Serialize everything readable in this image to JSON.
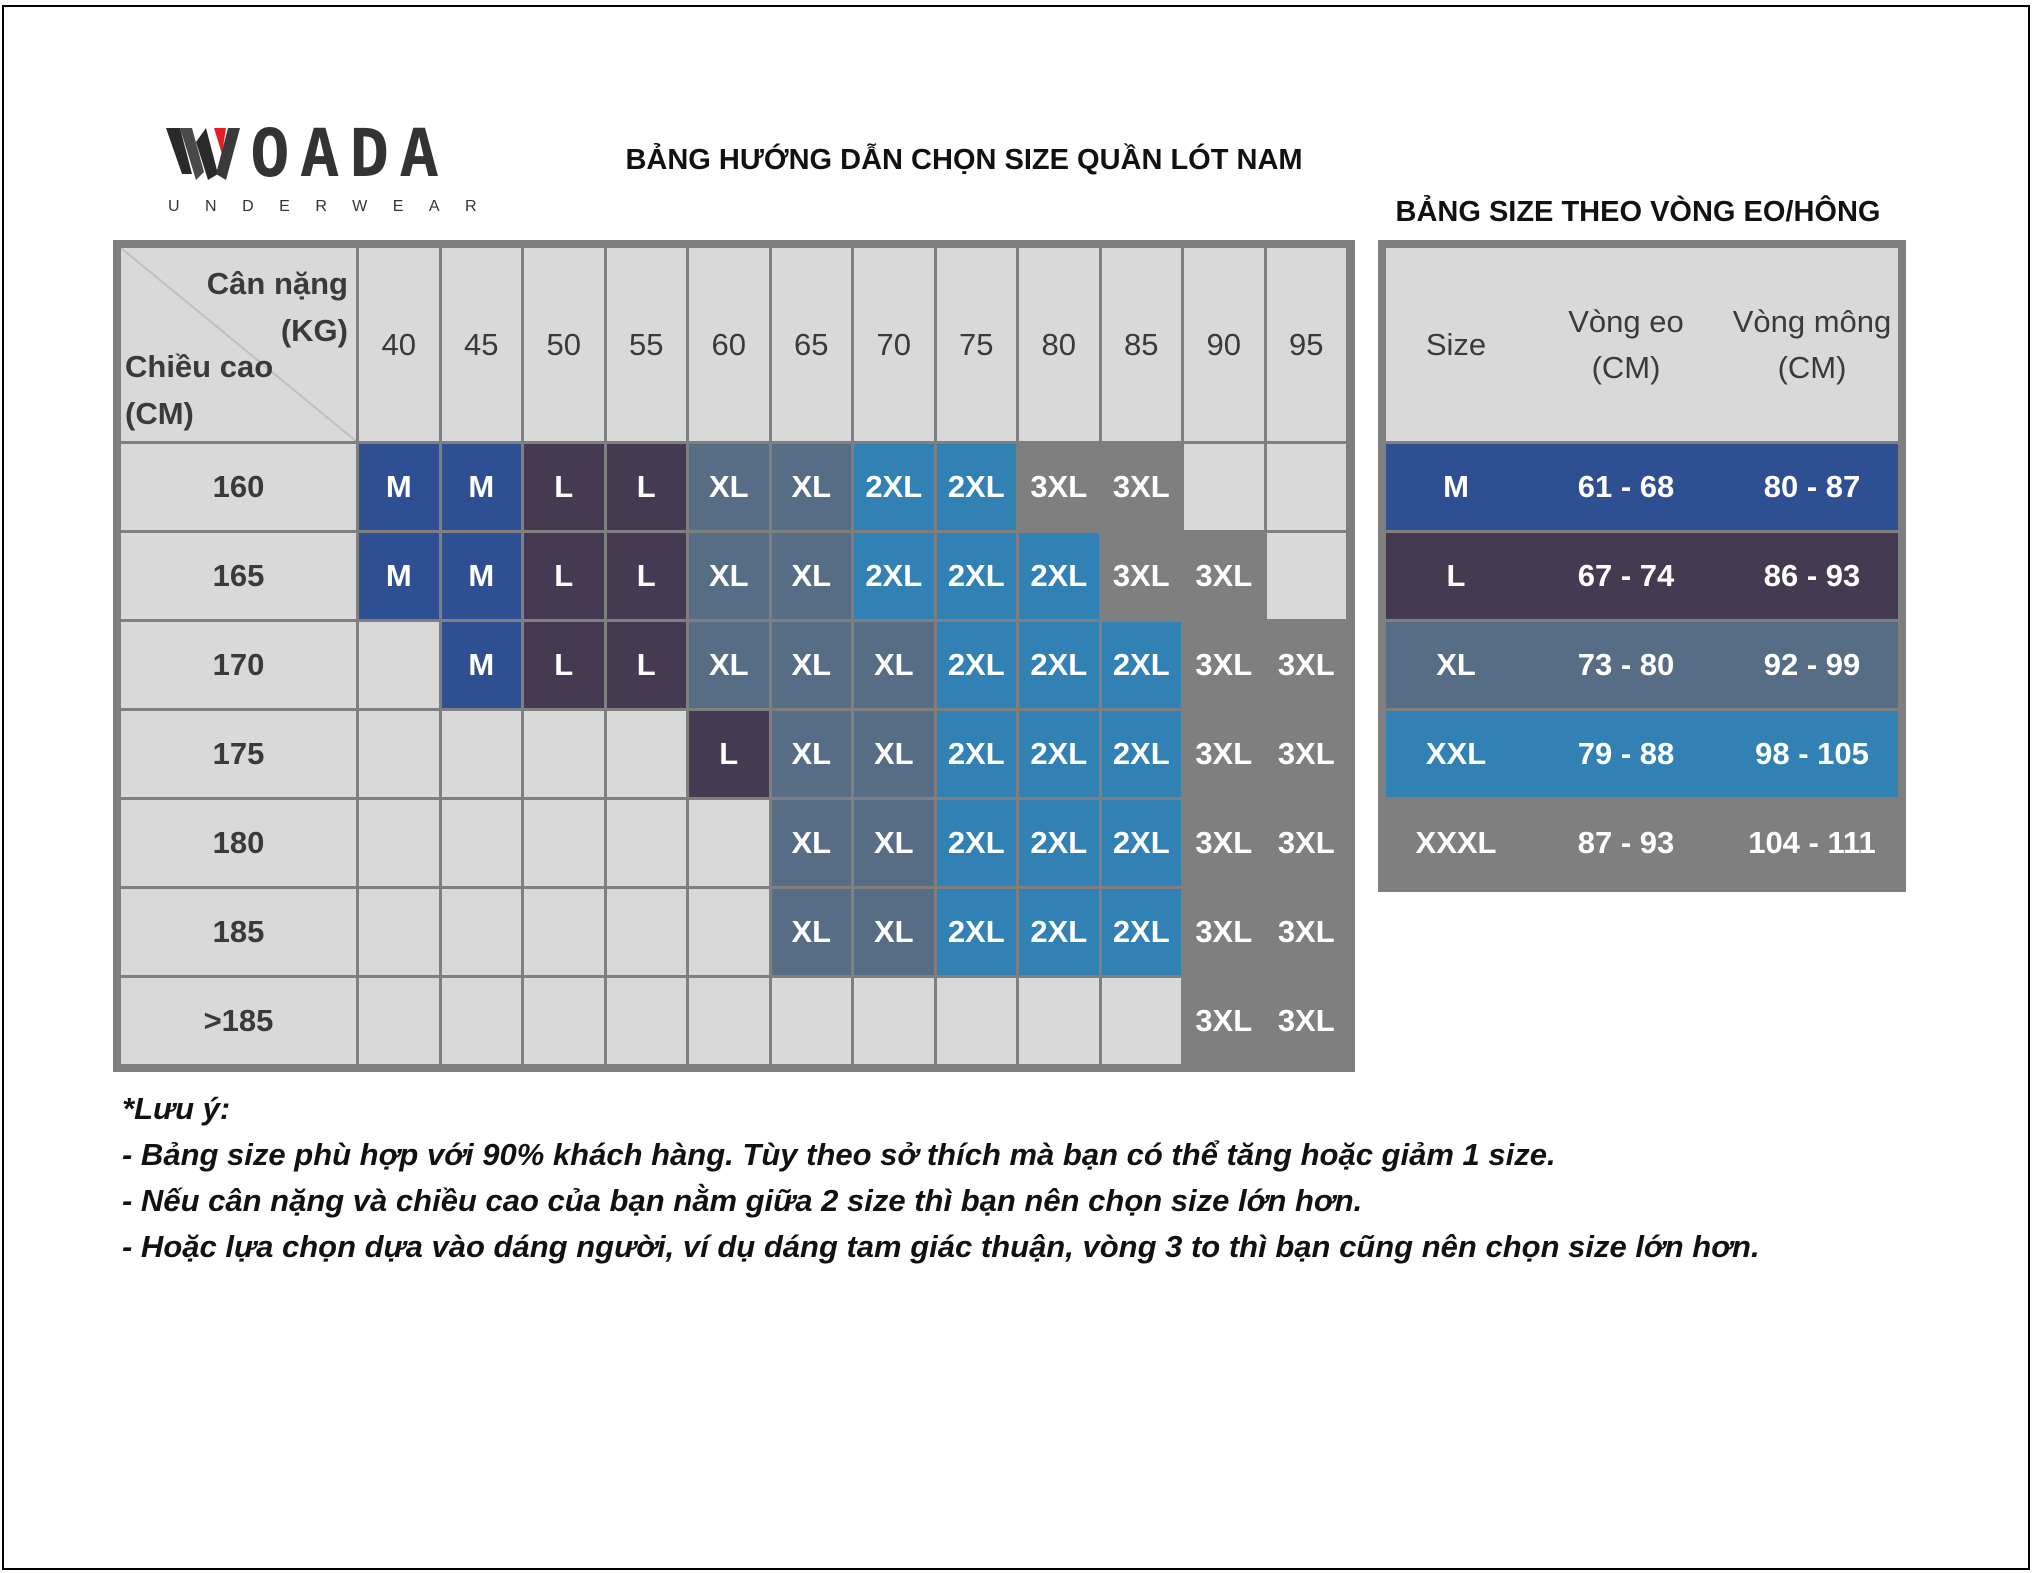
{
  "brand": {
    "name": "OADA",
    "tagline": "UNDERWEAR",
    "logo_mark": "W"
  },
  "title": "BẢNG HƯỚNG DẪN CHỌN SIZE QUẦN LÓT NAM",
  "side_title": "BẢNG SIZE THEO VÒNG EO/HÔNG",
  "colors": {
    "M": "#2e4f91",
    "L": "#463a52",
    "XL": "#566d85",
    "2XL": "#3181b4",
    "3XL": "#7f7f7f",
    "empty": "#d9d9d9"
  },
  "chart": {
    "corner_weight": "Cân nặng\n(KG)",
    "corner_height": "Chiều cao\n(CM)",
    "weights": [
      "40",
      "45",
      "50",
      "55",
      "60",
      "65",
      "70",
      "75",
      "80",
      "85",
      "90",
      "95"
    ],
    "rows": [
      {
        "height": "160",
        "sizes": [
          "M",
          "M",
          "L",
          "L",
          "XL",
          "XL",
          "2XL",
          "2XL",
          "3XL",
          "3XL",
          "",
          ""
        ]
      },
      {
        "height": "165",
        "sizes": [
          "M",
          "M",
          "L",
          "L",
          "XL",
          "XL",
          "2XL",
          "2XL",
          "2XL",
          "3XL",
          "3XL",
          ""
        ]
      },
      {
        "height": "170",
        "sizes": [
          "",
          "M",
          "L",
          "L",
          "XL",
          "XL",
          "XL",
          "2XL",
          "2XL",
          "2XL",
          "3XL",
          "3XL"
        ]
      },
      {
        "height": "175",
        "sizes": [
          "",
          "",
          "",
          "",
          "L",
          "XL",
          "XL",
          "2XL",
          "2XL",
          "2XL",
          "3XL",
          "3XL"
        ]
      },
      {
        "height": "180",
        "sizes": [
          "",
          "",
          "",
          "",
          "",
          "XL",
          "XL",
          "2XL",
          "2XL",
          "2XL",
          "3XL",
          "3XL"
        ]
      },
      {
        "height": "185",
        "sizes": [
          "",
          "",
          "",
          "",
          "",
          "XL",
          "XL",
          "2XL",
          "2XL",
          "2XL",
          "3XL",
          "3XL"
        ]
      },
      {
        "height": ">185",
        "sizes": [
          "",
          "",
          "",
          "",
          "",
          "",
          "",
          "",
          "",
          "",
          "3XL",
          "3XL"
        ]
      }
    ]
  },
  "measure_table": {
    "headers": [
      "Size",
      "Vòng eo\n(CM)",
      "Vòng mông\n(CM)"
    ],
    "rows": [
      {
        "size": "M",
        "waist": "61 - 68",
        "hip": "80 - 87",
        "color_key": "M"
      },
      {
        "size": "L",
        "waist": "67 - 74",
        "hip": "86 - 93",
        "color_key": "L"
      },
      {
        "size": "XL",
        "waist": "73 - 80",
        "hip": "92 - 99",
        "color_key": "XL"
      },
      {
        "size": "XXL",
        "waist": "79 - 88",
        "hip": "98 - 105",
        "color_key": "2XL"
      },
      {
        "size": "XXXL",
        "waist": "87 - 93",
        "hip": "104 - 111",
        "color_key": "3XL"
      }
    ]
  },
  "notes": {
    "heading": "*Lưu ý:",
    "lines": [
      "- Bảng size phù hợp với 90% khách hàng. Tùy theo sở thích mà bạn có thể tăng hoặc giảm 1 size.",
      "- Nếu cân nặng và chiều cao của bạn nằm giữa 2 size thì bạn nên chọn size lớn hơn.",
      "- Hoặc lựa chọn dựa vào dáng người, ví dụ dáng tam giác thuận, vòng 3 to thì bạn cũng nên chọn size lớn hơn."
    ]
  }
}
